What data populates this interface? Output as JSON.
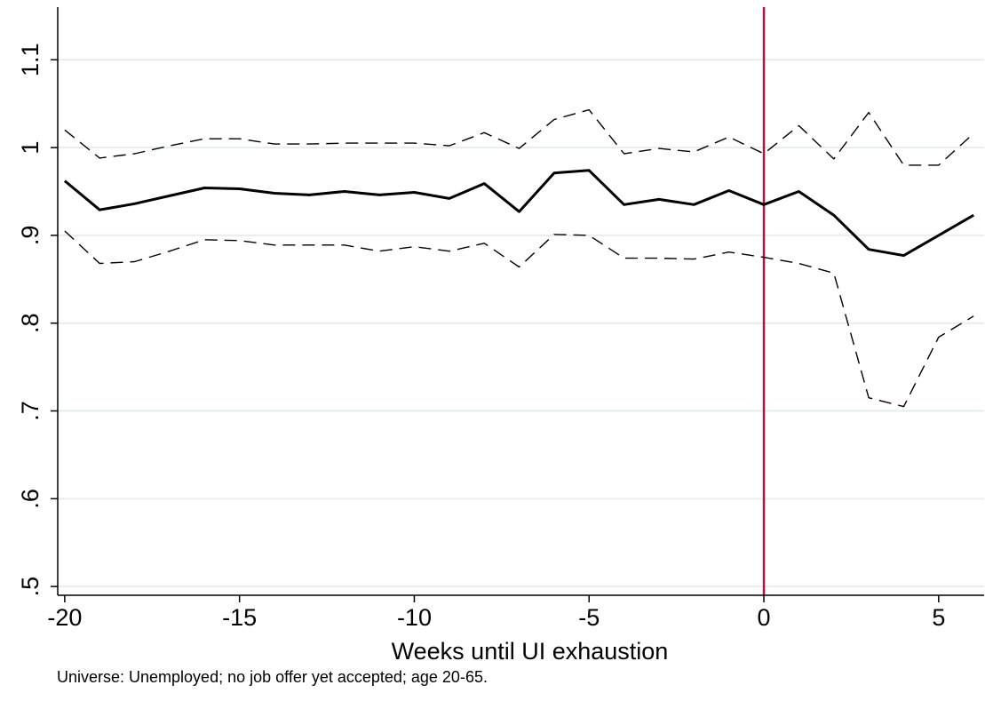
{
  "chart_data": {
    "type": "line",
    "title": "",
    "xlabel": "Weeks until UI exhaustion",
    "ylabel": "",
    "note": "Universe: Unemployed; no job offer yet accepted; age 20-65.",
    "xlim": [
      -20.2,
      6.3
    ],
    "ylim": [
      0.49,
      1.16
    ],
    "xticks": [
      -20,
      -15,
      -10,
      -5,
      0,
      5
    ],
    "xtick_labels": [
      "-20",
      "-15",
      "-10",
      "-5",
      "0",
      "5"
    ],
    "yticks": [
      0.5,
      0.6,
      0.7,
      0.8,
      0.9,
      1.0,
      1.1
    ],
    "ytick_labels": [
      ".5",
      ".6",
      ".7",
      ".8",
      ".9",
      "1",
      "1.1"
    ],
    "grid": true,
    "vline": {
      "x": 0,
      "color": "#b5123e"
    },
    "x": [
      -20,
      -19,
      -18,
      -17,
      -16,
      -15,
      -14,
      -13,
      -12,
      -11,
      -10,
      -9,
      -8,
      -7,
      -6,
      -5,
      -4,
      -3,
      -2,
      -1,
      0,
      1,
      2,
      3,
      4,
      5,
      6
    ],
    "series": [
      {
        "role": "estimate",
        "style": "solid",
        "color": "#000000",
        "values": [
          0.962,
          0.929,
          0.936,
          0.945,
          0.954,
          0.953,
          0.948,
          0.946,
          0.95,
          0.946,
          0.949,
          0.942,
          0.959,
          0.927,
          0.971,
          0.974,
          0.935,
          0.941,
          0.935,
          0.951,
          0.935,
          0.95,
          0.923,
          0.884,
          0.877,
          0.9,
          0.923
        ]
      },
      {
        "role": "upper_ci",
        "style": "dashed",
        "color": "#000000",
        "values": [
          1.02,
          0.988,
          0.993,
          1.002,
          1.01,
          1.01,
          1.004,
          1.004,
          1.005,
          1.005,
          1.005,
          1.002,
          1.017,
          0.999,
          1.032,
          1.043,
          0.993,
          0.999,
          0.995,
          1.012,
          0.993,
          1.025,
          0.987,
          1.04,
          0.98,
          0.98,
          1.016
        ]
      },
      {
        "role": "lower_ci",
        "style": "dashed",
        "color": "#000000",
        "values": [
          0.905,
          0.868,
          0.87,
          0.882,
          0.895,
          0.894,
          0.889,
          0.889,
          0.889,
          0.882,
          0.887,
          0.882,
          0.891,
          0.864,
          0.901,
          0.9,
          0.874,
          0.874,
          0.873,
          0.881,
          0.875,
          0.868,
          0.857,
          0.715,
          0.705,
          0.784,
          0.808
        ]
      }
    ]
  }
}
